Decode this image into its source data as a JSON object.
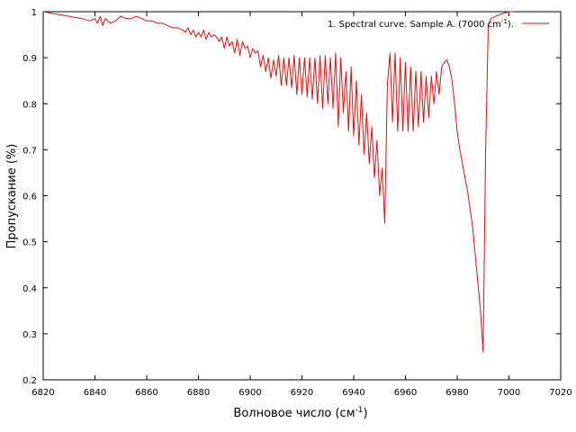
{
  "chart_data": {
    "type": "line",
    "xlabel": "Волновое число (см",
    "xlabel_sup": "-1",
    "xlabel_end": ")",
    "ylabel": "Пропускание (%)",
    "xlim": [
      6820,
      7020
    ],
    "ylim": [
      0.2,
      1.0
    ],
    "x_ticks": [
      6820,
      6840,
      6860,
      6880,
      6900,
      6920,
      6940,
      6960,
      6980,
      7000,
      7020
    ],
    "y_ticks": [
      0.2,
      0.3,
      0.4,
      0.5,
      0.6,
      0.7,
      0.8,
      0.9,
      1.0
    ],
    "y_tick_labels": [
      "0.2",
      "0.3",
      "0.4",
      "0.5",
      "0.6",
      "0.7",
      "0.8",
      "0.9",
      "1"
    ],
    "grid": false,
    "legend_position": "top-right",
    "series": [
      {
        "name_main": "1. Spectral curve. Sample A. (7000 cm",
        "name_sup": "-1",
        "name_end": ").",
        "color": "#dd1111",
        "x": [
          6820,
          6825,
          6830,
          6835,
          6838,
          6840,
          6841,
          6842,
          6843,
          6844,
          6845,
          6846,
          6848,
          6850,
          6852,
          6854,
          6856,
          6858,
          6860,
          6862,
          6864,
          6866,
          6868,
          6870,
          6872,
          6874,
          6875,
          6876,
          6877,
          6878,
          6879,
          6880,
          6881,
          6882,
          6883,
          6884,
          6885,
          6886,
          6887,
          6888,
          6889,
          6890,
          6891,
          6892,
          6893,
          6894,
          6895,
          6896,
          6897,
          6898,
          6899,
          6900,
          6901,
          6902,
          6903,
          6904,
          6905,
          6906,
          6907,
          6908,
          6909,
          6910,
          6911,
          6912,
          6913,
          6914,
          6915,
          6916,
          6917,
          6918,
          6919,
          6920,
          6921,
          6922,
          6923,
          6924,
          6925,
          6926,
          6927,
          6928,
          6929,
          6930,
          6931,
          6932,
          6933,
          6934,
          6935,
          6936,
          6937,
          6938,
          6939,
          6940,
          6941,
          6942,
          6943,
          6944,
          6945,
          6946,
          6947,
          6948,
          6949,
          6950,
          6951,
          6952,
          6953,
          6954,
          6955,
          6956,
          6957,
          6958,
          6959,
          6960,
          6961,
          6962,
          6963,
          6964,
          6965,
          6966,
          6967,
          6968,
          6969,
          6970,
          6971,
          6972,
          6973,
          6974,
          6975,
          6976,
          6977,
          6978,
          6979,
          6980,
          6981,
          6982,
          6983,
          6984,
          6985,
          6986,
          6987,
          6988,
          6989,
          6990,
          6991,
          6992,
          6993,
          6995,
          6997,
          7000,
          7002
        ],
        "y": [
          1.0,
          0.995,
          0.99,
          0.985,
          0.98,
          0.985,
          0.975,
          0.99,
          0.97,
          0.985,
          0.98,
          0.975,
          0.98,
          0.99,
          0.985,
          0.985,
          0.99,
          0.985,
          0.98,
          0.98,
          0.975,
          0.975,
          0.97,
          0.965,
          0.965,
          0.96,
          0.955,
          0.965,
          0.95,
          0.96,
          0.945,
          0.955,
          0.945,
          0.96,
          0.94,
          0.955,
          0.945,
          0.95,
          0.945,
          0.935,
          0.945,
          0.92,
          0.945,
          0.925,
          0.935,
          0.91,
          0.94,
          0.905,
          0.935,
          0.92,
          0.925,
          0.9,
          0.92,
          0.91,
          0.915,
          0.88,
          0.905,
          0.87,
          0.9,
          0.855,
          0.895,
          0.86,
          0.905,
          0.84,
          0.9,
          0.84,
          0.9,
          0.835,
          0.905,
          0.82,
          0.9,
          0.82,
          0.9,
          0.815,
          0.9,
          0.81,
          0.9,
          0.8,
          0.905,
          0.79,
          0.905,
          0.8,
          0.9,
          0.79,
          0.91,
          0.75,
          0.9,
          0.78,
          0.87,
          0.74,
          0.88,
          0.73,
          0.85,
          0.71,
          0.82,
          0.69,
          0.78,
          0.67,
          0.75,
          0.64,
          0.72,
          0.6,
          0.66,
          0.54,
          0.84,
          0.91,
          0.76,
          0.91,
          0.74,
          0.9,
          0.74,
          0.89,
          0.74,
          0.88,
          0.74,
          0.87,
          0.75,
          0.87,
          0.76,
          0.86,
          0.77,
          0.86,
          0.8,
          0.87,
          0.82,
          0.88,
          0.89,
          0.895,
          0.88,
          0.85,
          0.8,
          0.74,
          0.7,
          0.67,
          0.64,
          0.61,
          0.57,
          0.53,
          0.47,
          0.41,
          0.35,
          0.26,
          0.7,
          0.97,
          0.985,
          0.99,
          0.995,
          1.0,
          1.0
        ]
      }
    ]
  }
}
